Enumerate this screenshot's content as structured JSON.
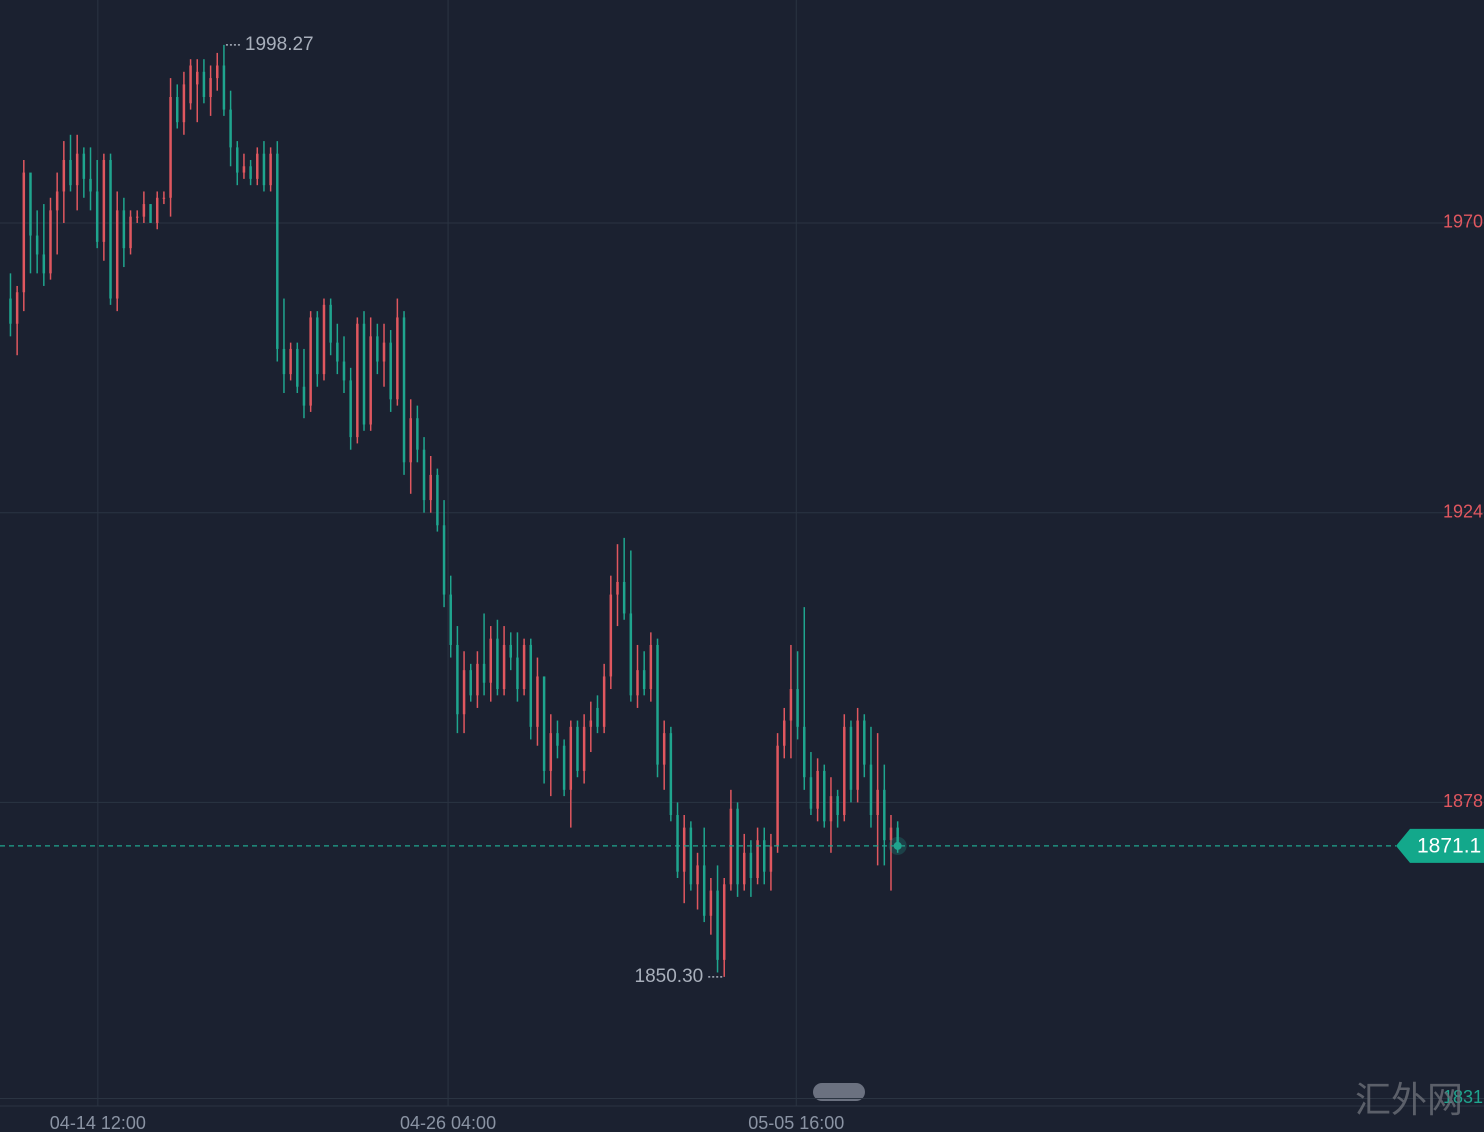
{
  "chart_data": {
    "type": "candlestick",
    "values": [
      [
        1958,
        1962,
        1952,
        1954
      ],
      [
        1954,
        1960,
        1949,
        1959
      ],
      [
        1959,
        1980,
        1956,
        1978
      ],
      [
        1978,
        1977,
        1962,
        1968
      ],
      [
        1968,
        1972,
        1962,
        1965
      ],
      [
        1965,
        1973,
        1960,
        1962
      ],
      [
        1962,
        1974,
        1961,
        1972
      ],
      [
        1972,
        1978,
        1965,
        1975
      ],
      [
        1975,
        1983,
        1970,
        1980
      ],
      [
        1980,
        1984,
        1975,
        1976
      ],
      [
        1976,
        1984,
        1972,
        1981
      ],
      [
        1981,
        1982,
        1974,
        1977
      ],
      [
        1977,
        1982,
        1972,
        1975
      ],
      [
        1975,
        1980,
        1966,
        1967
      ],
      [
        1967,
        1981,
        1964,
        1980
      ],
      [
        1980,
        1981,
        1957,
        1958
      ],
      [
        1958,
        1975,
        1956,
        1972
      ],
      [
        1972,
        1974,
        1963,
        1966
      ],
      [
        1966,
        1972,
        1965,
        1971
      ],
      [
        1971,
        1972,
        1970,
        1971
      ],
      [
        1971,
        1975,
        1970,
        1973
      ],
      [
        1973,
        1973,
        1970,
        1970
      ],
      [
        1970,
        1975,
        1969,
        1974
      ],
      [
        1974,
        1975,
        1973,
        1974
      ],
      [
        1974,
        1993,
        1971,
        1990
      ],
      [
        1990,
        1992,
        1985,
        1986
      ],
      [
        1986,
        1994,
        1984,
        1992
      ],
      [
        1989,
        1996,
        1988,
        1995
      ],
      [
        1992,
        1996,
        1986,
        1994
      ],
      [
        1994,
        1996,
        1989,
        1990
      ],
      [
        1990,
        1995,
        1987,
        1993
      ],
      [
        1993,
        1997,
        1991,
        1995
      ],
      [
        1995,
        1998.27,
        1987,
        1988
      ],
      [
        1988,
        1991,
        1979,
        1982
      ],
      [
        1982,
        1983,
        1976,
        1978
      ],
      [
        1978,
        1981,
        1977,
        1979
      ],
      [
        1979,
        1980,
        1976,
        1977
      ],
      [
        1977,
        1982,
        1976,
        1981
      ],
      [
        1981,
        1983,
        1975,
        1976
      ],
      [
        1976,
        1982,
        1975,
        1981
      ],
      [
        1981,
        1983,
        1948,
        1950
      ],
      [
        1950,
        1958,
        1943,
        1946
      ],
      [
        1946,
        1951,
        1945,
        1950
      ],
      [
        1950,
        1951,
        1943,
        1944
      ],
      [
        1944,
        1950,
        1939,
        1941
      ],
      [
        1941,
        1956,
        1940,
        1955
      ],
      [
        1955,
        1956,
        1944,
        1946
      ],
      [
        1946,
        1958,
        1945,
        1957
      ],
      [
        1957,
        1958,
        1949,
        1951
      ],
      [
        1951,
        1954,
        1946,
        1948
      ],
      [
        1948,
        1952,
        1943,
        1945
      ],
      [
        1945,
        1947,
        1934,
        1936
      ],
      [
        1936,
        1955,
        1935,
        1954
      ],
      [
        1954,
        1956,
        1937,
        1938
      ],
      [
        1938,
        1955,
        1937,
        1952
      ],
      [
        1952,
        1954,
        1946,
        1948
      ],
      [
        1948,
        1954,
        1944,
        1951
      ],
      [
        1951,
        1953,
        1940,
        1942
      ],
      [
        1942,
        1958,
        1941,
        1955
      ],
      [
        1955,
        1956,
        1930,
        1932
      ],
      [
        1932,
        1942,
        1927,
        1939
      ],
      [
        1939,
        1941,
        1932,
        1934
      ],
      [
        1934,
        1936,
        1924,
        1926
      ],
      [
        1926,
        1933,
        1924,
        1930
      ],
      [
        1930,
        1931,
        1921,
        1922
      ],
      [
        1922,
        1926,
        1909,
        1911
      ],
      [
        1911,
        1914,
        1901,
        1903
      ],
      [
        1903,
        1906,
        1889,
        1892
      ],
      [
        1892,
        1902,
        1889,
        1899
      ],
      [
        1899,
        1900,
        1894,
        1895
      ],
      [
        1895,
        1902,
        1893,
        1900
      ],
      [
        1900,
        1908,
        1895,
        1897
      ],
      [
        1897,
        1906,
        1894,
        1904
      ],
      [
        1904,
        1907,
        1895,
        1896
      ],
      [
        1896,
        1906,
        1895,
        1903
      ],
      [
        1903,
        1905,
        1899,
        1901
      ],
      [
        1901,
        1905,
        1894,
        1896
      ],
      [
        1896,
        1904,
        1895,
        1903
      ],
      [
        1903,
        1904,
        1888,
        1890
      ],
      [
        1890,
        1901,
        1887,
        1898
      ],
      [
        1898,
        1898,
        1881,
        1883
      ],
      [
        1883,
        1892,
        1879,
        1889
      ],
      [
        1889,
        1891,
        1885,
        1887
      ],
      [
        1887,
        1888,
        1879,
        1880
      ],
      [
        1880,
        1891,
        1874,
        1890
      ],
      [
        1890,
        1891,
        1882,
        1883
      ],
      [
        1883,
        1892,
        1881,
        1890
      ],
      [
        1890,
        1894,
        1886,
        1891
      ],
      [
        1893,
        1895,
        1889,
        1890
      ],
      [
        1890,
        1900,
        1889,
        1898
      ],
      [
        1898,
        1914,
        1896,
        1911
      ],
      [
        1911,
        1919,
        1906,
        1913
      ],
      [
        1913,
        1920,
        1907,
        1908
      ],
      [
        1908,
        1918,
        1894,
        1895
      ],
      [
        1895,
        1903,
        1893,
        1899
      ],
      [
        1899,
        1902,
        1895,
        1896
      ],
      [
        1896,
        1905,
        1894,
        1903
      ],
      [
        1903,
        1904,
        1882,
        1884
      ],
      [
        1884,
        1891,
        1880,
        1889
      ],
      [
        1889,
        1890,
        1875,
        1876
      ],
      [
        1876,
        1878,
        1866,
        1867
      ],
      [
        1867,
        1876,
        1862,
        1874
      ],
      [
        1874,
        1875,
        1864,
        1865
      ],
      [
        1865,
        1870,
        1861,
        1868
      ],
      [
        1868,
        1874,
        1859,
        1860
      ],
      [
        1860,
        1866,
        1857,
        1864
      ],
      [
        1864,
        1868,
        1851,
        1853
      ],
      [
        1853,
        1866,
        1850.3,
        1865
      ],
      [
        1865,
        1880,
        1864,
        1877
      ],
      [
        1877,
        1878,
        1863,
        1865
      ],
      [
        1865,
        1873,
        1864,
        1870
      ],
      [
        1870,
        1872,
        1863,
        1866
      ],
      [
        1866,
        1874,
        1865,
        1872
      ],
      [
        1872,
        1874,
        1865,
        1867
      ],
      [
        1867,
        1873,
        1864,
        1871
      ],
      [
        1871,
        1889,
        1870,
        1887
      ],
      [
        1887,
        1893,
        1885,
        1891
      ],
      [
        1891,
        1903,
        1885,
        1896
      ],
      [
        1896,
        1902,
        1888,
        1890
      ],
      [
        1890,
        1909,
        1880,
        1882
      ],
      [
        1882,
        1886,
        1876,
        1877
      ],
      [
        1877,
        1885,
        1875,
        1883
      ],
      [
        1883,
        1884,
        1874,
        1875
      ],
      [
        1875,
        1882,
        1870,
        1879
      ],
      [
        1879,
        1880,
        1874,
        1876
      ],
      [
        1876,
        1892,
        1875,
        1890
      ],
      [
        1890,
        1891,
        1878,
        1880
      ],
      [
        1880,
        1893,
        1878,
        1891
      ],
      [
        1891,
        1892,
        1882,
        1884
      ],
      [
        1884,
        1890,
        1874,
        1876
      ],
      [
        1876,
        1889,
        1868,
        1880
      ],
      [
        1880,
        1884,
        1868,
        1872
      ],
      [
        1872,
        1876,
        1864,
        1874
      ],
      [
        1874,
        1875,
        1870,
        1871.1
      ]
    ],
    "up_color": "#e0575f",
    "down_color": "#1fa58e",
    "ylim": [
      1829.8,
      2005.4
    ],
    "yticks": [
      1970,
      1924,
      1878,
      1831
    ],
    "xlim": [
      -1.57,
      220.9
    ],
    "xticks": [
      {
        "value": 13.1,
        "label": "04-14 12:00"
      },
      {
        "value": 65.6,
        "label": "04-26 04:00"
      },
      {
        "value": 117.8,
        "label": "05-05 16:00"
      }
    ],
    "grid": true,
    "extremes": [
      {
        "value": 1998.27,
        "label": "1998.27"
      },
      {
        "value": 1850.3,
        "label": "1850.30"
      }
    ],
    "last_price": 1871.1,
    "watermark": "汇外网"
  }
}
